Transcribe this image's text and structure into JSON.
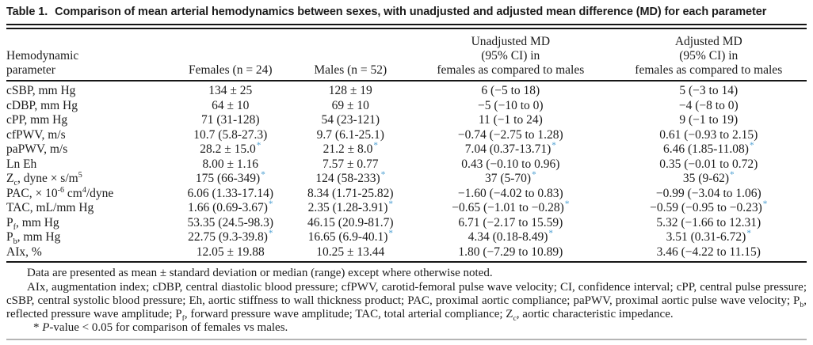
{
  "title": {
    "label": "Table 1.",
    "caption": "Comparison of mean arterial hemodynamics between sexes, with unadjusted and adjusted mean difference (MD) for each parameter"
  },
  "table": {
    "star_color": "#4d9fd1",
    "columns": [
      {
        "id": "parameter",
        "align": "left",
        "width": "20.5%",
        "lines": [
          "Hemodynamic",
          "parameter"
        ]
      },
      {
        "id": "females",
        "align": "center",
        "width": "15%",
        "lines": [
          "Females (n = 24)"
        ]
      },
      {
        "id": "males",
        "align": "center",
        "width": "15%",
        "lines": [
          "Males (n = 52)"
        ]
      },
      {
        "id": "unadjusted-md",
        "align": "center",
        "width": "25%",
        "lines": [
          "Unadjusted MD",
          "(95% CI) in",
          "females as compared to males"
        ]
      },
      {
        "id": "adjusted-md",
        "align": "center",
        "width": "24.5%",
        "lines": [
          "Adjusted MD",
          "(95% CI) in",
          "females as compared to males"
        ]
      }
    ],
    "rows": [
      {
        "param": [
          {
            "t": "cSBP, mm Hg"
          }
        ],
        "cells": [
          {
            "v": "134 ± 25",
            "star": false
          },
          {
            "v": "128 ± 19",
            "star": false
          },
          {
            "v": "6 (−5 to 18)",
            "star": false
          },
          {
            "v": "5 (−3 to 14)",
            "star": false
          }
        ]
      },
      {
        "param": [
          {
            "t": "cDBP, mm Hg"
          }
        ],
        "cells": [
          {
            "v": "64 ± 10",
            "star": false
          },
          {
            "v": "69 ± 10",
            "star": false
          },
          {
            "v": "−5 (−10 to 0)",
            "star": false
          },
          {
            "v": "−4 (−8 to 0)",
            "star": false
          }
        ]
      },
      {
        "param": [
          {
            "t": "cPP, mm Hg"
          }
        ],
        "cells": [
          {
            "v": "71 (31-128)",
            "star": false
          },
          {
            "v": "54 (23-121)",
            "star": false
          },
          {
            "v": "11 (−1 to 24)",
            "star": false
          },
          {
            "v": "9 (−1 to 19)",
            "star": false
          }
        ]
      },
      {
        "param": [
          {
            "t": "cfPWV, m/s"
          }
        ],
        "cells": [
          {
            "v": "10.7 (5.8-27.3)",
            "star": false
          },
          {
            "v": "9.7 (6.1-25.1)",
            "star": false
          },
          {
            "v": "−0.74 (−2.75 to 1.28)",
            "star": false
          },
          {
            "v": "0.61 (−0.93 to 2.15)",
            "star": false
          }
        ]
      },
      {
        "param": [
          {
            "t": "paPWV, m/s"
          }
        ],
        "cells": [
          {
            "v": "28.2 ± 15.0",
            "star": true
          },
          {
            "v": "21.2 ± 8.0",
            "star": true
          },
          {
            "v": "7.04 (0.37-13.71)",
            "star": true
          },
          {
            "v": "6.46 (1.85-11.08)",
            "star": true
          }
        ]
      },
      {
        "param": [
          {
            "t": "Ln Eh"
          }
        ],
        "cells": [
          {
            "v": "8.00 ± 1.16",
            "star": false
          },
          {
            "v": "7.57 ± 0.77",
            "star": false
          },
          {
            "v": "0.43 (−0.10 to 0.96)",
            "star": false
          },
          {
            "v": "0.35 (−0.01 to 0.72)",
            "star": false
          }
        ]
      },
      {
        "param": [
          {
            "t": "Z"
          },
          {
            "t": "c",
            "fmt": "sub"
          },
          {
            "t": ", dyne × s/m"
          },
          {
            "t": "5",
            "fmt": "sup"
          }
        ],
        "cells": [
          {
            "v": "175 (66-349)",
            "star": true
          },
          {
            "v": "124 (58-233)",
            "star": true
          },
          {
            "v": "37 (5-70)",
            "star": true
          },
          {
            "v": "35 (9-62)",
            "star": true
          }
        ]
      },
      {
        "param": [
          {
            "t": "PAC, × 10"
          },
          {
            "t": "-6",
            "fmt": "sup"
          },
          {
            "t": " cm"
          },
          {
            "t": "4",
            "fmt": "sup"
          },
          {
            "t": "/dyne"
          }
        ],
        "cells": [
          {
            "v": "6.06 (1.33-17.14)",
            "star": false
          },
          {
            "v": "8.34 (1.71-25.82)",
            "star": false
          },
          {
            "v": "−1.60 (−4.02 to 0.83)",
            "star": false
          },
          {
            "v": "−0.99 (−3.04 to 1.06)",
            "star": false
          }
        ]
      },
      {
        "param": [
          {
            "t": "TAC, mL/mm Hg"
          }
        ],
        "cells": [
          {
            "v": "1.66 (0.69-3.67)",
            "star": true
          },
          {
            "v": "2.35 (1.28-3.91)",
            "star": true
          },
          {
            "v": "−0.65 (−1.01 to −0.28)",
            "star": true
          },
          {
            "v": "−0.59 (−0.95 to −0.23)",
            "star": true
          }
        ]
      },
      {
        "param": [
          {
            "t": "P"
          },
          {
            "t": "f",
            "fmt": "sub"
          },
          {
            "t": ", mm Hg"
          }
        ],
        "cells": [
          {
            "v": "53.35 (24.5-98.3)",
            "star": false
          },
          {
            "v": "46.15 (20.9-81.7)",
            "star": false
          },
          {
            "v": "6.71 (−2.17 to 15.59)",
            "star": false
          },
          {
            "v": "5.32 (−1.66 to 12.31)",
            "star": false
          }
        ]
      },
      {
        "param": [
          {
            "t": "P"
          },
          {
            "t": "b",
            "fmt": "sub"
          },
          {
            "t": ", mm Hg"
          }
        ],
        "cells": [
          {
            "v": "22.75 (9.3-39.8)",
            "star": true
          },
          {
            "v": "16.65 (6.9-40.1)",
            "star": true
          },
          {
            "v": "4.34 (0.18-8.49)",
            "star": true
          },
          {
            "v": "3.51 (0.31-6.72)",
            "star": true
          }
        ]
      },
      {
        "param": [
          {
            "t": "AIx, %"
          }
        ],
        "cells": [
          {
            "v": "12.05 ± 19.88",
            "star": false
          },
          {
            "v": "10.25 ± 13.44",
            "star": false
          },
          {
            "v": "1.80 (−7.29 to 10.89)",
            "star": false
          },
          {
            "v": "3.46 (−4.22 to 11.15)",
            "star": false
          }
        ]
      }
    ],
    "footnotes": [
      {
        "name": "footnote-data-presentation",
        "parts": [
          {
            "t": "Data are presented as mean ± standard deviation or median (range) except where otherwise noted."
          }
        ]
      },
      {
        "name": "footnote-abbreviations",
        "parts": [
          {
            "t": "AIx, augmentation index; cDBP, central diastolic blood pressure; cfPWV, carotid-femoral pulse wave velocity; CI, confidence interval; cPP, central pulse pressure; cSBP, central systolic blood pressure; Eh, aortic stiffness to wall thickness product; PAC, proximal aortic compliance; paPWV, proximal aortic pulse wave velocity; P"
          },
          {
            "t": "b",
            "fmt": "sub"
          },
          {
            "t": ", reflected pressure wave amplitude; P"
          },
          {
            "t": "f",
            "fmt": "sub"
          },
          {
            "t": ", forward pressure wave amplitude; TAC, total arterial compliance; Z"
          },
          {
            "t": "c",
            "fmt": "sub"
          },
          {
            "t": ", aortic characteristic impedance."
          }
        ]
      },
      {
        "name": "footnote-significance",
        "parts": [
          {
            "t": "* "
          },
          {
            "t": "P",
            "fmt": "italic"
          },
          {
            "t": "-value < 0.05 for comparison of females vs males."
          }
        ]
      }
    ]
  }
}
